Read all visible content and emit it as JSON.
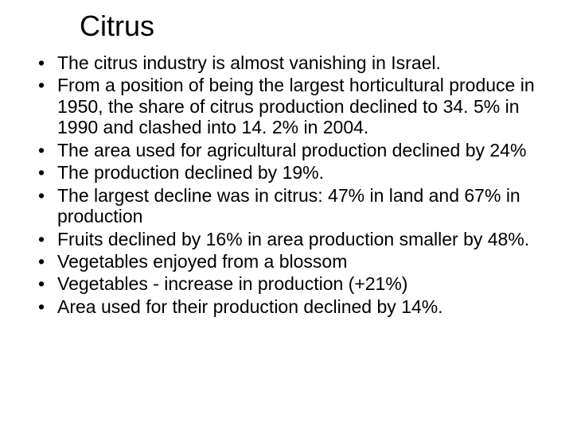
{
  "slide": {
    "title": "Citrus",
    "title_fontsize": 36,
    "body_fontsize": 23,
    "background_color": "#ffffff",
    "text_color": "#000000",
    "font_family": "Arial",
    "bullets": [
      "The citrus industry is almost vanishing in Israel.",
      "From a position of being the largest horticultural produce in 1950, the share of citrus production declined to 34. 5% in 1990 and clashed into 14. 2% in 2004.",
      "The area used for agricultural production declined by 24%",
      "The production declined by 19%.",
      "The largest decline was in citrus: 47% in land and 67% in production",
      "Fruits declined by 16% in area  production smaller by 48%.",
      "Vegetables enjoyed from a blossom",
      "Vegetables - increase  in production (+21%)",
      "Area used for their production declined by 14%."
    ]
  }
}
